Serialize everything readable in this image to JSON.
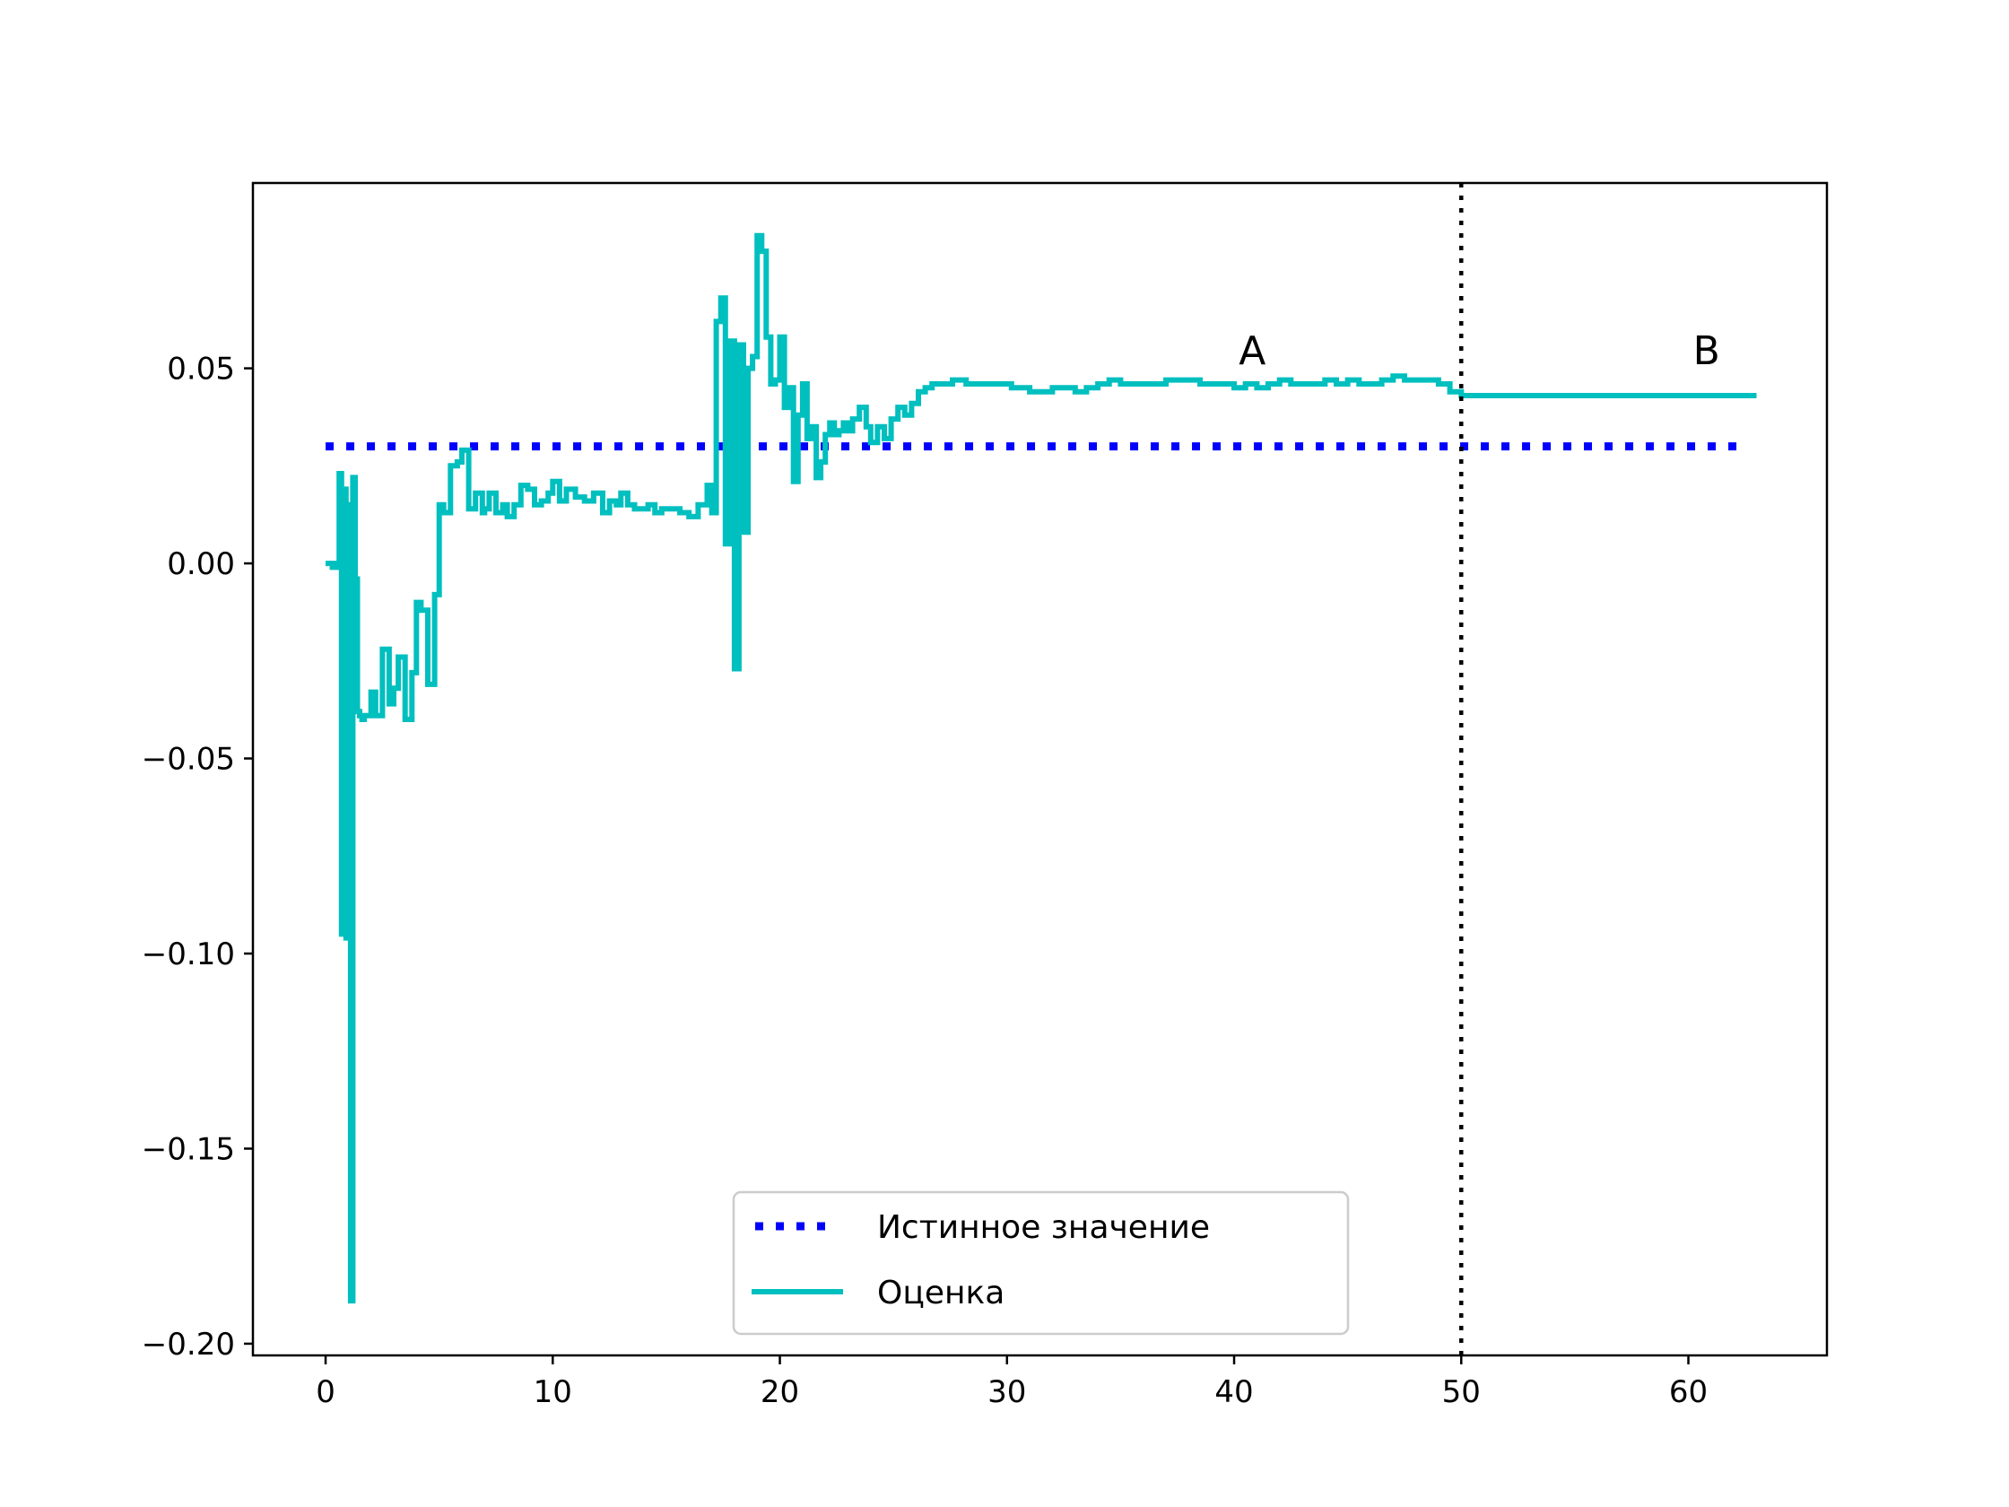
{
  "chart_data": {
    "type": "line",
    "title": "",
    "xlabel": "",
    "ylabel": "",
    "xlim": [
      -3.2,
      66.1
    ],
    "ylim": [
      -0.203,
      0.0975
    ],
    "x_ticks": [
      0,
      10,
      20,
      30,
      40,
      50,
      60
    ],
    "x_tick_labels": [
      "0",
      "10",
      "20",
      "30",
      "40",
      "50",
      "60"
    ],
    "y_ticks": [
      0.05,
      0.0,
      -0.05,
      -0.1,
      -0.15,
      -0.2
    ],
    "y_tick_labels": [
      "0.05",
      "0.00",
      "−0.05",
      "−0.10",
      "−0.15",
      "−0.20"
    ],
    "grid": false,
    "legend": {
      "position": "lower-center",
      "entries": [
        {
          "label": "Истинное значение",
          "color": "#0000ff",
          "style": "dotted"
        },
        {
          "label": "Оценка",
          "color": "#00bfbf",
          "style": "solid"
        }
      ]
    },
    "annotations": [
      {
        "text": "A",
        "x": 40.8,
        "y": 0.051
      },
      {
        "text": "B",
        "x": 60.8,
        "y": 0.051
      }
    ],
    "vertical_line": {
      "x": 50,
      "color": "#000000",
      "style": "dotted"
    },
    "series": [
      {
        "name": "Истинное значение",
        "color": "#0000ff",
        "style": "dotted",
        "x": [
          0,
          62.5
        ],
        "y": [
          0.03,
          0.03
        ]
      },
      {
        "name": "Оценка",
        "color": "#00bfbf",
        "style": "solid-step",
        "x": [
          0,
          0.3,
          0.5,
          0.6,
          0.7,
          0.8,
          0.9,
          1.0,
          1.1,
          1.2,
          1.3,
          1.4,
          1.5,
          1.6,
          1.7,
          1.8,
          2.0,
          2.2,
          2.5,
          2.8,
          3.0,
          3.2,
          3.5,
          3.8,
          4.0,
          4.2,
          4.5,
          4.8,
          5.0,
          5.2,
          5.5,
          5.8,
          6.0,
          6.3,
          6.6,
          6.9,
          7.0,
          7.2,
          7.5,
          7.8,
          8.0,
          8.3,
          8.6,
          8.9,
          9.2,
          9.5,
          9.8,
          10.0,
          10.3,
          10.6,
          11.0,
          11.4,
          11.8,
          12.2,
          12.5,
          12.8,
          13.0,
          13.3,
          13.6,
          13.9,
          14.2,
          14.5,
          14.8,
          15.2,
          15.6,
          16.0,
          16.4,
          16.8,
          17.0,
          17.2,
          17.4,
          17.6,
          17.8,
          18.0,
          18.2,
          18.4,
          18.6,
          18.8,
          19.0,
          19.2,
          19.4,
          19.6,
          19.8,
          20.0,
          20.2,
          20.4,
          20.6,
          20.8,
          21.0,
          21.2,
          21.4,
          21.6,
          21.8,
          22.0,
          22.2,
          22.4,
          22.6,
          22.8,
          23.0,
          23.2,
          23.5,
          23.8,
          24.0,
          24.3,
          24.6,
          24.9,
          25.2,
          25.5,
          25.8,
          26.1,
          26.4,
          26.7,
          27.0,
          27.3,
          27.6,
          27.9,
          28.2,
          28.6,
          29.0,
          29.4,
          29.8,
          30.2,
          30.6,
          31.0,
          31.5,
          32.0,
          32.5,
          33.0,
          33.5,
          34.0,
          34.5,
          35.0,
          35.5,
          36.0,
          36.5,
          37.0,
          37.5,
          38.0,
          38.5,
          39.0,
          39.5,
          40.0,
          40.5,
          41.0,
          41.5,
          42.0,
          42.5,
          43.0,
          43.5,
          44.0,
          44.5,
          45.0,
          45.5,
          46.0,
          46.5,
          47.0,
          47.5,
          48.0,
          48.5,
          49.0,
          49.5,
          50.0,
          63.0
        ],
        "y": [
          0.0,
          -0.001,
          0.0,
          0.023,
          -0.095,
          0.019,
          -0.096,
          0.015,
          -0.189,
          0.022,
          -0.004,
          -0.038,
          -0.039,
          -0.04,
          -0.039,
          -0.039,
          -0.033,
          -0.039,
          -0.022,
          -0.036,
          -0.032,
          -0.024,
          -0.04,
          -0.028,
          -0.01,
          -0.012,
          -0.031,
          -0.008,
          0.015,
          0.013,
          0.025,
          0.026,
          0.029,
          0.014,
          0.018,
          0.013,
          0.014,
          0.018,
          0.013,
          0.015,
          0.012,
          0.015,
          0.02,
          0.019,
          0.015,
          0.016,
          0.018,
          0.021,
          0.016,
          0.019,
          0.017,
          0.016,
          0.018,
          0.013,
          0.016,
          0.015,
          0.018,
          0.015,
          0.014,
          0.014,
          0.015,
          0.013,
          0.014,
          0.014,
          0.013,
          0.012,
          0.015,
          0.02,
          0.013,
          0.062,
          0.068,
          0.005,
          0.057,
          -0.027,
          0.056,
          0.008,
          0.05,
          0.053,
          0.084,
          0.08,
          0.058,
          0.046,
          0.047,
          0.058,
          0.04,
          0.045,
          0.021,
          0.038,
          0.046,
          0.032,
          0.035,
          0.022,
          0.026,
          0.033,
          0.036,
          0.033,
          0.034,
          0.036,
          0.034,
          0.037,
          0.04,
          0.035,
          0.031,
          0.035,
          0.032,
          0.037,
          0.04,
          0.038,
          0.041,
          0.044,
          0.045,
          0.046,
          0.046,
          0.046,
          0.047,
          0.047,
          0.046,
          0.046,
          0.046,
          0.046,
          0.046,
          0.045,
          0.045,
          0.044,
          0.044,
          0.045,
          0.045,
          0.044,
          0.045,
          0.046,
          0.047,
          0.046,
          0.046,
          0.046,
          0.046,
          0.047,
          0.047,
          0.047,
          0.046,
          0.046,
          0.046,
          0.045,
          0.046,
          0.045,
          0.046,
          0.047,
          0.046,
          0.046,
          0.046,
          0.047,
          0.046,
          0.047,
          0.046,
          0.046,
          0.047,
          0.048,
          0.047,
          0.047,
          0.047,
          0.046,
          0.044,
          0.043,
          0.043
        ]
      }
    ]
  }
}
